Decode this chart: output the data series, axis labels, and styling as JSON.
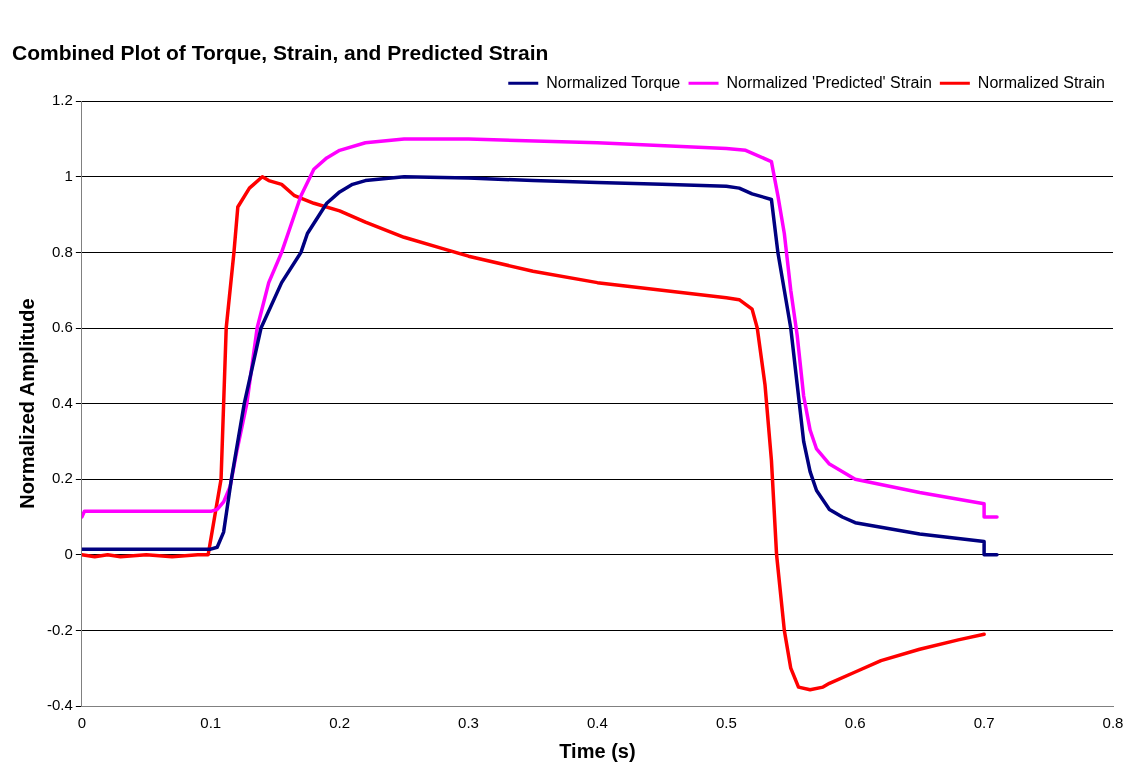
{
  "chart_data": {
    "type": "line",
    "title": "Combined Plot of Torque, Strain, and Predicted Strain",
    "xlabel": "Time (s)",
    "ylabel": "Normalized Amplitude",
    "xlim": [
      0,
      0.8
    ],
    "xticks": [
      0,
      0.1,
      0.2,
      0.3,
      0.4,
      0.5,
      0.6,
      0.7,
      0.8
    ],
    "ylim": [
      -0.4,
      1.2
    ],
    "yticks": [
      -0.4,
      -0.2,
      0,
      0.2,
      0.4,
      0.6,
      0.8,
      1,
      1.2
    ],
    "grid": "y",
    "legend": "top right",
    "marker": "none",
    "line_style": "solid",
    "series": [
      {
        "name": "Normalized Torque",
        "color": "#000080",
        "x": [
          0,
          0.1,
          0.105,
          0.11,
          0.116,
          0.126,
          0.139,
          0.155,
          0.17,
          0.175,
          0.19,
          0.2,
          0.21,
          0.22,
          0.25,
          0.3,
          0.35,
          0.4,
          0.45,
          0.5,
          0.51,
          0.52,
          0.535,
          0.54,
          0.545,
          0.55,
          0.555,
          0.56,
          0.565,
          0.57,
          0.58,
          0.59,
          0.6,
          0.65,
          0.7,
          0.7,
          0.71
        ],
        "values": [
          0.015,
          0.015,
          0.02,
          0.06,
          0.2,
          0.4,
          0.6,
          0.72,
          0.8,
          0.85,
          0.93,
          0.96,
          0.98,
          0.99,
          1.0,
          0.997,
          0.99,
          0.985,
          0.98,
          0.975,
          0.97,
          0.955,
          0.94,
          0.8,
          0.7,
          0.6,
          0.45,
          0.3,
          0.22,
          0.17,
          0.12,
          0.1,
          0.085,
          0.055,
          0.035,
          0.0,
          0.0
        ]
      },
      {
        "name": "Normalized 'Predicted' Strain",
        "color": "#ff00ff",
        "x": [
          0,
          0.002,
          0.1,
          0.105,
          0.11,
          0.115,
          0.12,
          0.128,
          0.136,
          0.145,
          0.155,
          0.17,
          0.18,
          0.19,
          0.2,
          0.22,
          0.25,
          0.3,
          0.4,
          0.5,
          0.515,
          0.535,
          0.54,
          0.545,
          0.55,
          0.555,
          0.56,
          0.565,
          0.57,
          0.58,
          0.6,
          0.65,
          0.7,
          0.7,
          0.71
        ],
        "values": [
          0.1,
          0.115,
          0.115,
          0.12,
          0.14,
          0.18,
          0.27,
          0.4,
          0.6,
          0.72,
          0.8,
          0.95,
          1.02,
          1.05,
          1.07,
          1.09,
          1.1,
          1.1,
          1.09,
          1.075,
          1.07,
          1.04,
          0.95,
          0.85,
          0.7,
          0.58,
          0.42,
          0.33,
          0.28,
          0.24,
          0.2,
          0.165,
          0.135,
          0.1,
          0.1
        ]
      },
      {
        "name": "Normalized Strain",
        "color": "#ff0000",
        "x": [
          0,
          0.01,
          0.02,
          0.03,
          0.05,
          0.07,
          0.09,
          0.098,
          0.103,
          0.108,
          0.112,
          0.118,
          0.121,
          0.13,
          0.14,
          0.145,
          0.155,
          0.165,
          0.18,
          0.2,
          0.22,
          0.25,
          0.28,
          0.3,
          0.35,
          0.4,
          0.45,
          0.5,
          0.51,
          0.52,
          0.524,
          0.53,
          0.535,
          0.539,
          0.545,
          0.55,
          0.556,
          0.565,
          0.575,
          0.58,
          0.6,
          0.62,
          0.65,
          0.68,
          0.7
        ],
        "values": [
          0,
          -0.005,
          0,
          -0.005,
          0,
          -0.005,
          0,
          0,
          0.1,
          0.2,
          0.6,
          0.8,
          0.92,
          0.97,
          1.0,
          0.99,
          0.98,
          0.95,
          0.93,
          0.91,
          0.88,
          0.84,
          0.81,
          0.79,
          0.75,
          0.72,
          0.7,
          0.68,
          0.675,
          0.65,
          0.6,
          0.45,
          0.25,
          0,
          -0.2,
          -0.3,
          -0.35,
          -0.357,
          -0.35,
          -0.34,
          -0.31,
          -0.28,
          -0.25,
          -0.225,
          -0.21
        ]
      }
    ]
  }
}
